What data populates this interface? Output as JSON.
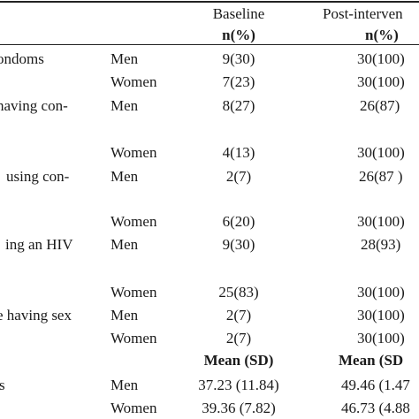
{
  "header": {
    "baseline": "Baseline",
    "post": "Post-interven",
    "n_pct_baseline": "n(%)",
    "n_pct_post": "n(%)"
  },
  "rows": [
    {
      "label": "ondoms",
      "sex": "Men",
      "baseline": "9(30)",
      "post": "30(100)"
    },
    {
      "label": "",
      "sex": "Women",
      "baseline": "7(23)",
      "post": "30(100)"
    },
    {
      "label": "having con-",
      "sex": "Men",
      "baseline": "8(27)",
      "post": "26(87)"
    },
    {
      "label": "",
      "sex": "Women",
      "baseline": "4(13)",
      "post": "30(100)"
    },
    {
      "label": "using con-",
      "sex": "Men",
      "baseline": "2(7)",
      "post": "26(87 )"
    },
    {
      "label": "",
      "sex": "Women",
      "baseline": "6(20)",
      "post": "30(100)"
    },
    {
      "label": "ing an HIV",
      "sex": "Men",
      "baseline": "9(30)",
      "post": "28(93)"
    },
    {
      "label": "",
      "sex": "Women",
      "baseline": "25(83)",
      "post": "30(100)"
    },
    {
      "label": "e having sex",
      "sex": "Men",
      "baseline": "2(7)",
      "post": "30(100)"
    },
    {
      "label": "",
      "sex": "Women",
      "baseline": "2(7)",
      "post": "30(100)"
    }
  ],
  "mean_header": {
    "baseline": "Mean (SD)",
    "post": "Mean (SD"
  },
  "mean_rows": [
    {
      "label": "s",
      "sex": "Men",
      "baseline": "37.23 (11.84)",
      "post": "49.46 (1.47"
    },
    {
      "label": "",
      "sex": "Women",
      "baseline": "39.36 (7.82)",
      "post": "46.73 (4.88"
    }
  ]
}
